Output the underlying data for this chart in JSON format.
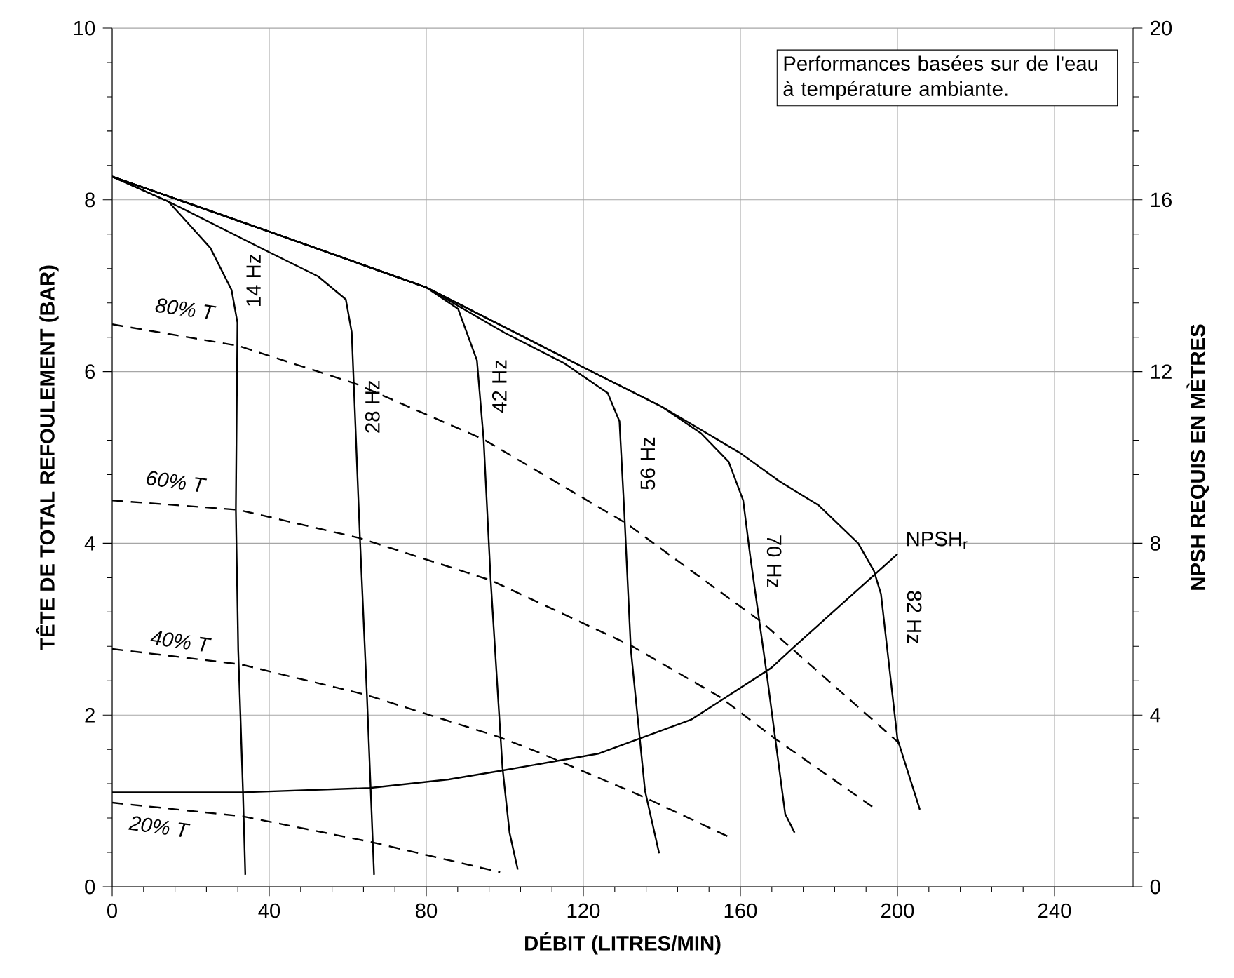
{
  "chart_data": {
    "type": "line",
    "xlabel": "DÉBIT (LITRES/MIN)",
    "ylabel": "TÊTE DE TOTAL REFOULEMENT (BAR)",
    "y2label": "NPSH REQUIS EN MÈTRES",
    "annotations": [
      "Performances basées sur de l'eau à température ambiante."
    ],
    "xlim": [
      0,
      260
    ],
    "xticks": [
      0,
      40,
      80,
      120,
      160,
      200,
      240
    ],
    "ylim": [
      0,
      10
    ],
    "yticks": [
      0,
      2,
      4,
      6,
      8,
      10
    ],
    "y2lim": [
      0,
      20
    ],
    "y2ticks": [
      0,
      4,
      8,
      12,
      16,
      20
    ],
    "grid": true,
    "legend": false,
    "marker": "none",
    "series": [
      {
        "name": "14 Hz",
        "color": "#000000",
        "line_style": "solid",
        "x": [
          0,
          14.3,
          25,
          30.4,
          31.9,
          31.5,
          32.1,
          33.3,
          33.9
        ],
        "values": [
          8.27,
          7.98,
          7.44,
          6.95,
          6.57,
          4.39,
          2.76,
          1.12,
          0.14
        ]
      },
      {
        "name": "28 Hz",
        "color": "#000000",
        "line_style": "solid",
        "x": [
          0,
          14.3,
          40,
          52.4,
          59.5,
          61,
          63.1,
          64.9,
          66.7
        ],
        "values": [
          8.27,
          7.98,
          7.39,
          7.11,
          6.84,
          6.46,
          4.06,
          2.21,
          0.14
        ]
      },
      {
        "name": "42 Hz",
        "color": "#000000",
        "line_style": "solid",
        "x": [
          0,
          40,
          80,
          88.1,
          92.9,
          94.6,
          96.4,
          99.4,
          101.2,
          103.3
        ],
        "values": [
          8.27,
          7.63,
          6.98,
          6.73,
          6.13,
          5.21,
          3.57,
          1.39,
          0.63,
          0.2
        ]
      },
      {
        "name": "56 Hz",
        "color": "#000000",
        "line_style": "solid",
        "x": [
          0,
          40,
          80,
          100,
          115,
          126.2,
          129.2,
          130.4,
          132.1,
          135.7,
          139.3
        ],
        "values": [
          8.27,
          7.63,
          6.98,
          6.45,
          6.1,
          5.75,
          5.42,
          4.39,
          2.76,
          1.12,
          0.39
        ]
      },
      {
        "name": "70 Hz",
        "color": "#000000",
        "line_style": "solid",
        "x": [
          0,
          40,
          80,
          120,
          140,
          150,
          157,
          160.7,
          162.5,
          166.7,
          171.4,
          173.8
        ],
        "values": [
          8.27,
          7.63,
          6.98,
          6.05,
          5.59,
          5.28,
          4.95,
          4.5,
          3.85,
          2.48,
          0.85,
          0.63
        ]
      },
      {
        "name": "82 Hz",
        "color": "#000000",
        "line_style": "solid",
        "x": [
          0,
          40,
          80,
          120,
          140,
          160,
          170,
          180,
          190,
          194,
          195.8,
          200,
          205.7
        ],
        "values": [
          8.27,
          7.63,
          6.98,
          6.05,
          5.59,
          5.05,
          4.72,
          4.44,
          4.0,
          3.68,
          3.41,
          1.72,
          0.9
        ]
      },
      {
        "name": "80% T",
        "color": "#000000",
        "line_style": "dashed",
        "x": [
          0,
          32.1,
          61.9,
          94.6,
          131,
          165.5,
          200,
          201.2
        ],
        "values": [
          6.55,
          6.3,
          5.86,
          5.21,
          4.23,
          3.08,
          1.69,
          1.61
        ]
      },
      {
        "name": "60% T",
        "color": "#000000",
        "line_style": "dashed",
        "x": [
          0,
          32.1,
          63.1,
          96.4,
          132.1,
          154.8,
          169,
          194.6
        ],
        "values": [
          4.5,
          4.39,
          4.06,
          3.57,
          2.81,
          2.21,
          1.72,
          0.9
        ]
      },
      {
        "name": "40% T",
        "color": "#000000",
        "line_style": "dashed",
        "x": [
          0,
          32.7,
          64.3,
          98.2,
          108.9,
          135.7,
          157.1
        ],
        "values": [
          2.77,
          2.59,
          2.24,
          1.75,
          1.56,
          1.04,
          0.58
        ]
      },
      {
        "name": "20% T",
        "color": "#000000",
        "line_style": "dashed",
        "x": [
          0,
          33.3,
          66.1,
          98.8
        ],
        "values": [
          0.98,
          0.82,
          0.52,
          0.17
        ]
      },
      {
        "name": "NPSH$_{r}$",
        "color": "#000000",
        "line_style": "solid",
        "axis": "y2",
        "x": [
          0,
          33.3,
          65.5,
          85.7,
          98.8,
          123.8,
          147.6,
          167.9,
          173.8,
          200
        ],
        "values": [
          2.2,
          2.2,
          2.3,
          2.5,
          2.7,
          3.1,
          3.9,
          5.1,
          5.6,
          7.75
        ]
      }
    ]
  }
}
